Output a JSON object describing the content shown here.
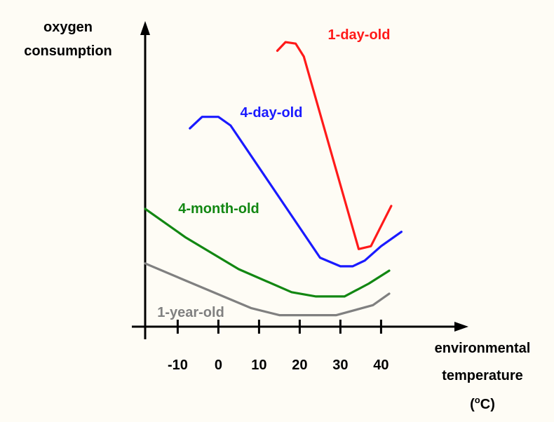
{
  "chart_data": {
    "type": "line",
    "title": "",
    "ylabel_lines": [
      "oxygen",
      "consumption"
    ],
    "xlabel_lines": [
      "environmental",
      "temperature"
    ],
    "unit_parts": {
      "open": "(",
      "degree": "o",
      "rest": "C)"
    },
    "xlim": [
      -18,
      50
    ],
    "ylim": [
      0,
      10
    ],
    "xticks": [
      -10,
      0,
      10,
      20,
      30,
      40
    ],
    "grid": false,
    "legend": "none",
    "series": [
      {
        "name": "1-day-old",
        "color": "#ff1a1a",
        "points": [
          [
            14.5,
            9.6
          ],
          [
            16.5,
            9.9
          ],
          [
            19,
            9.85
          ],
          [
            21,
            9.4
          ],
          [
            34.5,
            2.7
          ],
          [
            37.5,
            2.8
          ],
          [
            42.5,
            4.2
          ]
        ]
      },
      {
        "name": "4-day-old",
        "color": "#1a1aff",
        "points": [
          [
            -7,
            6.9
          ],
          [
            -4,
            7.3
          ],
          [
            0,
            7.3
          ],
          [
            3,
            7.0
          ],
          [
            25,
            2.4
          ],
          [
            30,
            2.1
          ],
          [
            33,
            2.1
          ],
          [
            36,
            2.3
          ],
          [
            40,
            2.8
          ],
          [
            45,
            3.3
          ]
        ]
      },
      {
        "name": "4-month-old",
        "color": "#128712",
        "points": [
          [
            -18,
            4.1
          ],
          [
            -8,
            3.1
          ],
          [
            5,
            2.0
          ],
          [
            18,
            1.2
          ],
          [
            24,
            1.05
          ],
          [
            31,
            1.05
          ],
          [
            37,
            1.5
          ],
          [
            42,
            1.95
          ]
        ]
      },
      {
        "name": "1-year-old",
        "color": "#808080",
        "points": [
          [
            -18,
            2.2
          ],
          [
            -8,
            1.6
          ],
          [
            8,
            0.65
          ],
          [
            15,
            0.4
          ],
          [
            29,
            0.4
          ],
          [
            38,
            0.75
          ],
          [
            42,
            1.15
          ]
        ]
      }
    ]
  }
}
